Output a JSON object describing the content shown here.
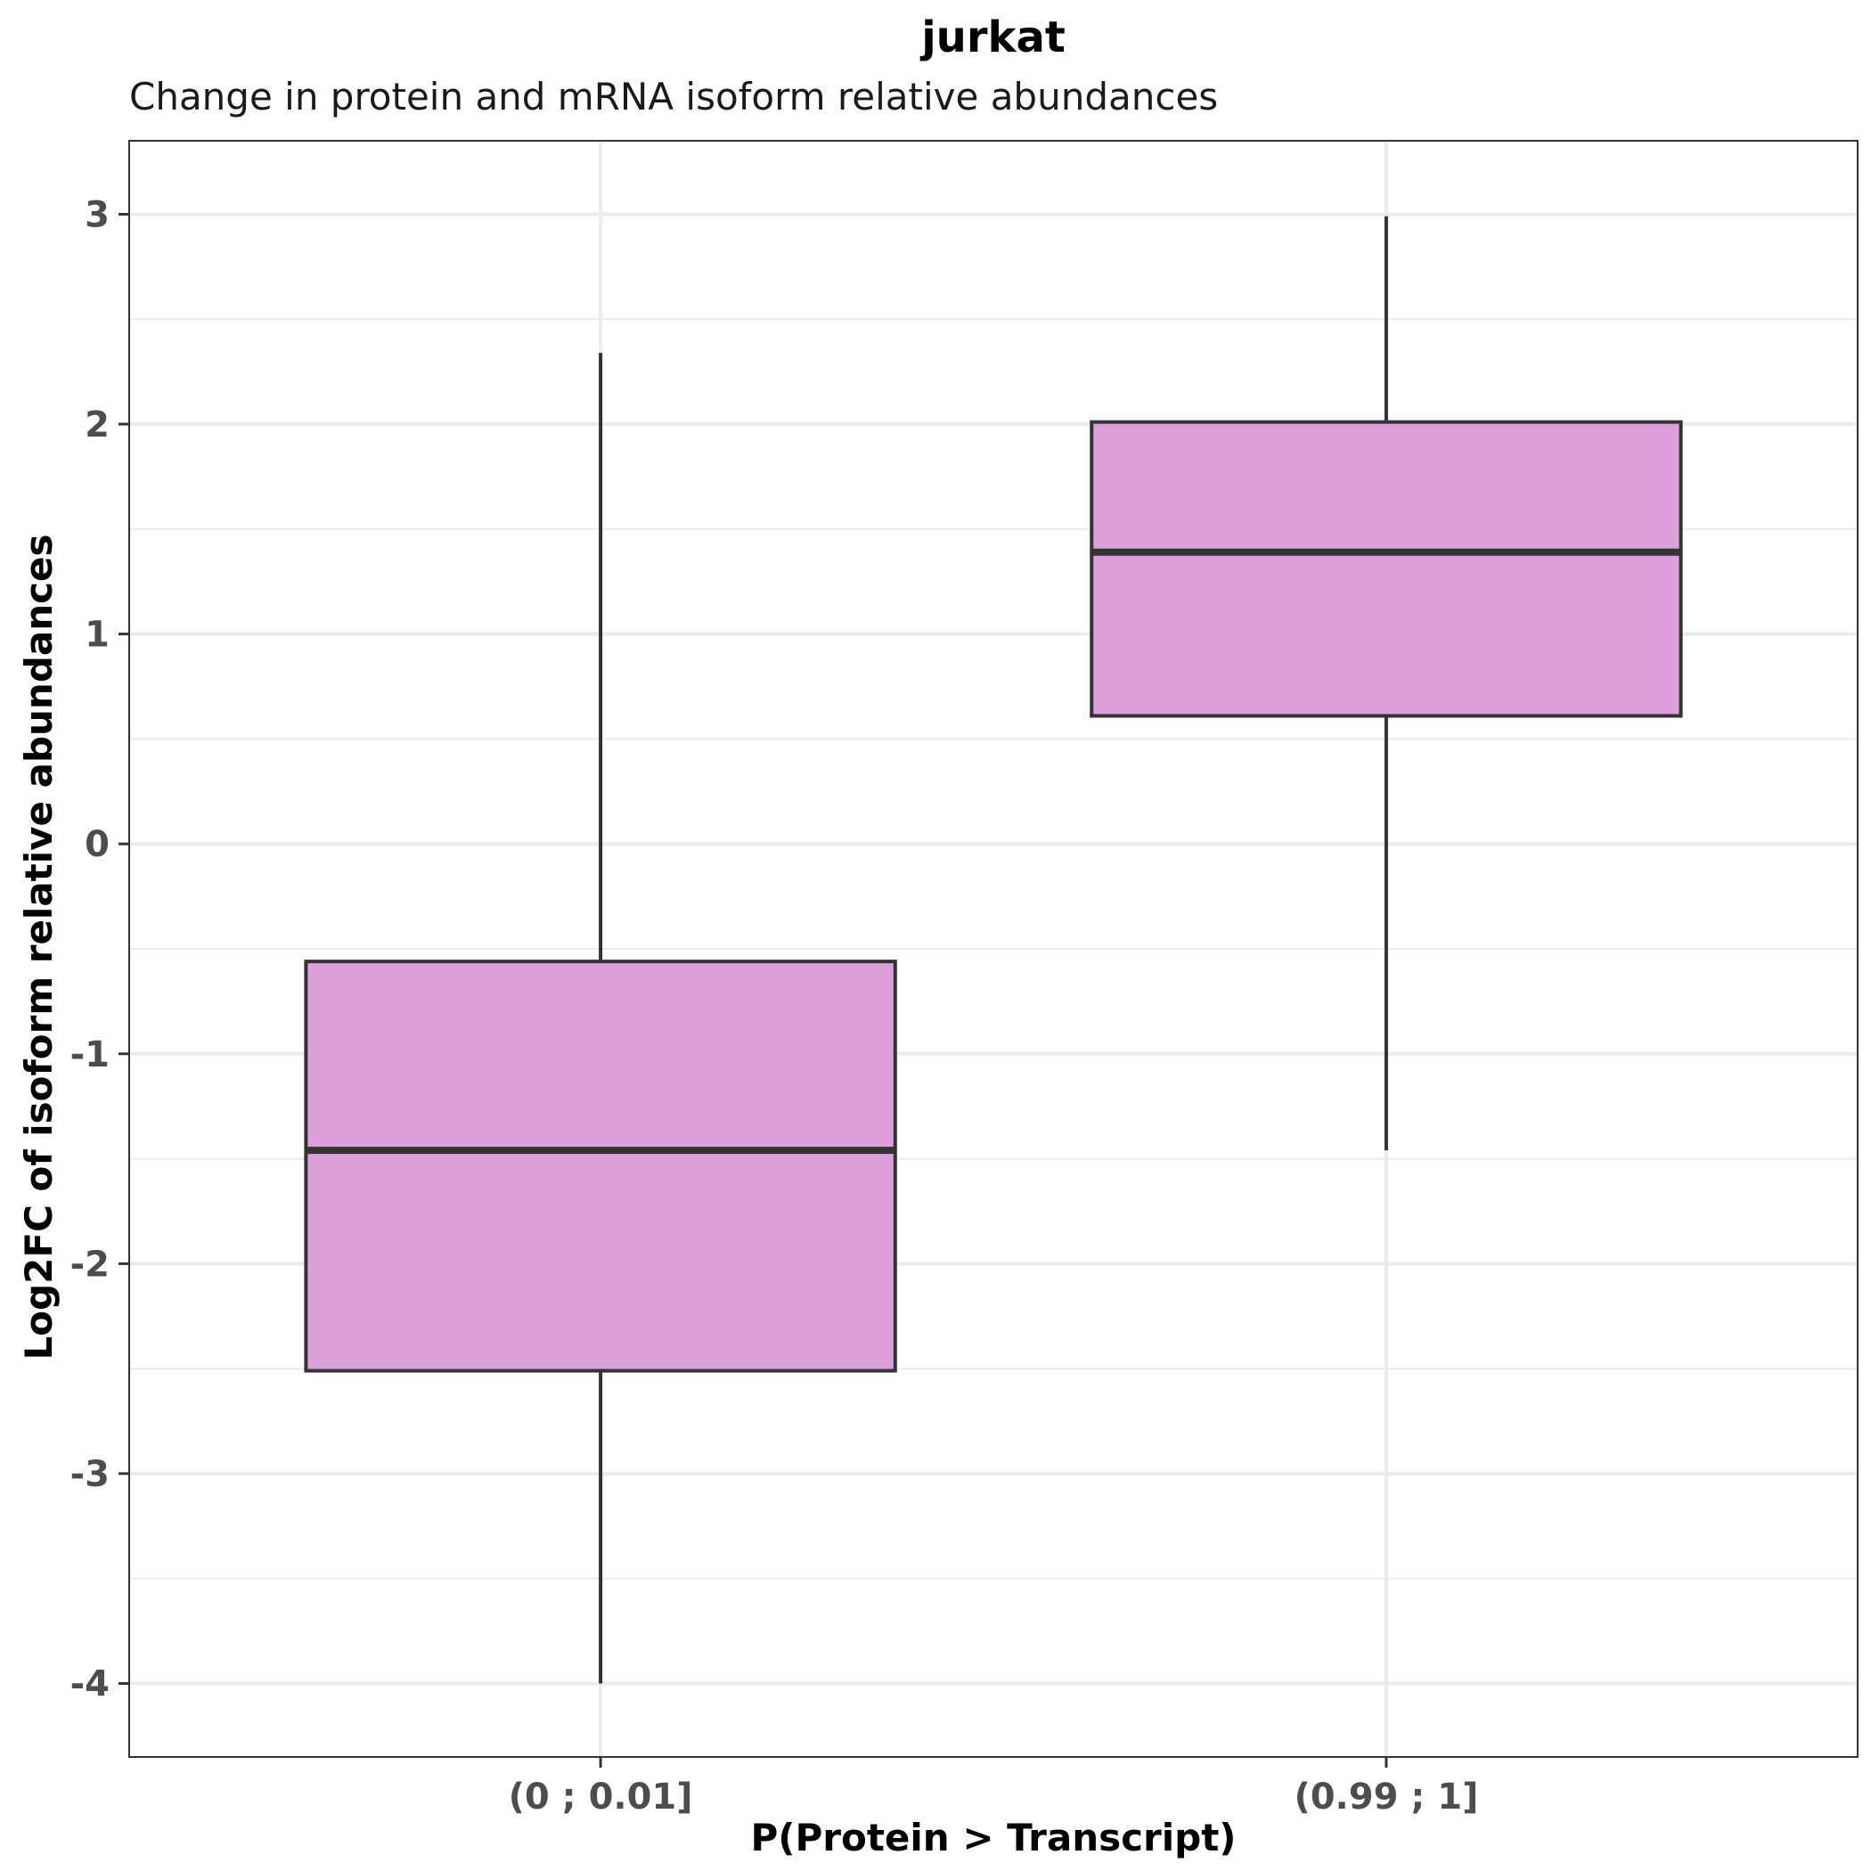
{
  "colors": {
    "box_fill": "#DDA0DD",
    "box_stroke": "#333333",
    "grid": "#ebebeb",
    "panel_border": "#333333",
    "tick_text": "#4d4d4d"
  },
  "chart_data": {
    "type": "box",
    "title": "jurkat",
    "subtitle": "Change in protein and mRNA isoform relative abundances",
    "xlabel": "P(Protein > Transcript)",
    "ylabel": "Log2FC of isoform relative abundances",
    "ylim": [
      -4.35,
      3.35
    ],
    "y_ticks": [
      3,
      2,
      1,
      0,
      -1,
      -2,
      -3,
      -4
    ],
    "y_tick_labels": [
      "3",
      "2",
      "1",
      "0",
      "-1",
      "-2",
      "-3",
      "-4"
    ],
    "grid": true,
    "categories": [
      "(0 ; 0.01]",
      "(0.99 ; 1]"
    ],
    "boxes": [
      {
        "category": "(0 ; 0.01]",
        "whisker_low": -4.0,
        "q1": -2.51,
        "median": -1.46,
        "q3": -0.56,
        "whisker_high": 2.34
      },
      {
        "category": "(0.99 ; 1]",
        "whisker_low": -1.46,
        "q1": 0.61,
        "median": 1.39,
        "q3": 2.01,
        "whisker_high": 2.99
      }
    ]
  }
}
